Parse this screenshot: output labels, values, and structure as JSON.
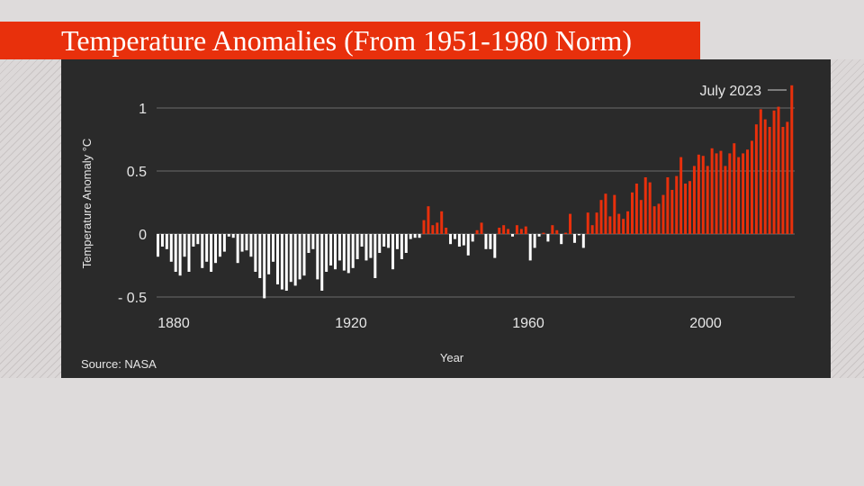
{
  "title": "Temperature Anomalies (From 1951-1980 Norm)",
  "colors": {
    "positive": "#e8300c",
    "negative": "#ffffff",
    "panel": "#2a2a2a",
    "title_bg": "#e8300c"
  },
  "chart_data": {
    "type": "bar",
    "title": "Temperature Anomalies (From 1951-1980 Norm)",
    "xlabel": "Year",
    "ylabel": "Temperature Anomaly °C",
    "source": "Source: NASA",
    "annotation": "July 2023",
    "xlim": [
      1880,
      2023
    ],
    "ylim": [
      -0.5,
      1.2
    ],
    "x_ticks": [
      1880,
      1920,
      1960,
      2000
    ],
    "y_ticks": [
      -0.5,
      0,
      0.5,
      1
    ],
    "y_tick_labels": [
      "- 0.5",
      "0",
      "0.5",
      "1"
    ],
    "grid": true,
    "x": [
      1880,
      1881,
      1882,
      1883,
      1884,
      1885,
      1886,
      1887,
      1888,
      1889,
      1890,
      1891,
      1892,
      1893,
      1894,
      1895,
      1896,
      1897,
      1898,
      1899,
      1900,
      1901,
      1902,
      1903,
      1904,
      1905,
      1906,
      1907,
      1908,
      1909,
      1910,
      1911,
      1912,
      1913,
      1914,
      1915,
      1916,
      1917,
      1918,
      1919,
      1920,
      1921,
      1922,
      1923,
      1924,
      1925,
      1926,
      1927,
      1928,
      1929,
      1930,
      1931,
      1932,
      1933,
      1934,
      1935,
      1936,
      1937,
      1938,
      1939,
      1940,
      1941,
      1942,
      1943,
      1944,
      1945,
      1946,
      1947,
      1948,
      1949,
      1950,
      1951,
      1952,
      1953,
      1954,
      1955,
      1956,
      1957,
      1958,
      1959,
      1960,
      1961,
      1962,
      1963,
      1964,
      1965,
      1966,
      1967,
      1968,
      1969,
      1970,
      1971,
      1972,
      1973,
      1974,
      1975,
      1976,
      1977,
      1978,
      1979,
      1980,
      1981,
      1982,
      1983,
      1984,
      1985,
      1986,
      1987,
      1988,
      1989,
      1990,
      1991,
      1992,
      1993,
      1994,
      1995,
      1996,
      1997,
      1998,
      1999,
      2000,
      2001,
      2002,
      2003,
      2004,
      2005,
      2006,
      2007,
      2008,
      2009,
      2010,
      2011,
      2012,
      2013,
      2014,
      2015,
      2016,
      2017,
      2018,
      2019,
      2020,
      2021,
      2022,
      2023
    ],
    "values": [
      -0.18,
      -0.1,
      -0.12,
      -0.22,
      -0.3,
      -0.33,
      -0.18,
      -0.3,
      -0.1,
      -0.08,
      -0.27,
      -0.22,
      -0.3,
      -0.23,
      -0.18,
      -0.14,
      -0.02,
      -0.03,
      -0.23,
      -0.14,
      -0.13,
      -0.18,
      -0.3,
      -0.35,
      -0.51,
      -0.32,
      -0.22,
      -0.4,
      -0.44,
      -0.45,
      -0.38,
      -0.41,
      -0.36,
      -0.33,
      -0.15,
      -0.12,
      -0.36,
      -0.45,
      -0.3,
      -0.25,
      -0.28,
      -0.21,
      -0.29,
      -0.31,
      -0.27,
      -0.2,
      -0.1,
      -0.21,
      -0.19,
      -0.35,
      -0.15,
      -0.1,
      -0.11,
      -0.28,
      -0.12,
      -0.2,
      -0.15,
      -0.04,
      -0.03,
      -0.03,
      0.11,
      0.22,
      0.07,
      0.09,
      0.18,
      0.05,
      -0.08,
      -0.04,
      -0.1,
      -0.09,
      -0.17,
      -0.06,
      0.03,
      0.09,
      -0.12,
      -0.12,
      -0.19,
      0.05,
      0.07,
      0.04,
      -0.02,
      0.07,
      0.04,
      0.06,
      -0.21,
      -0.11,
      -0.02,
      0.01,
      -0.06,
      0.07,
      0.03,
      -0.08,
      0.01,
      0.16,
      -0.07,
      -0.01,
      -0.11,
      0.17,
      0.07,
      0.17,
      0.27,
      0.32,
      0.14,
      0.31,
      0.16,
      0.12,
      0.18,
      0.33,
      0.4,
      0.27,
      0.45,
      0.41,
      0.22,
      0.24,
      0.31,
      0.45,
      0.35,
      0.46,
      0.61,
      0.4,
      0.42,
      0.54,
      0.63,
      0.62,
      0.54,
      0.68,
      0.64,
      0.66,
      0.54,
      0.64,
      0.72,
      0.61,
      0.64,
      0.67,
      0.74,
      0.87,
      0.99,
      0.91,
      0.85,
      0.98,
      1.01,
      0.85,
      0.89,
      1.18
    ]
  }
}
